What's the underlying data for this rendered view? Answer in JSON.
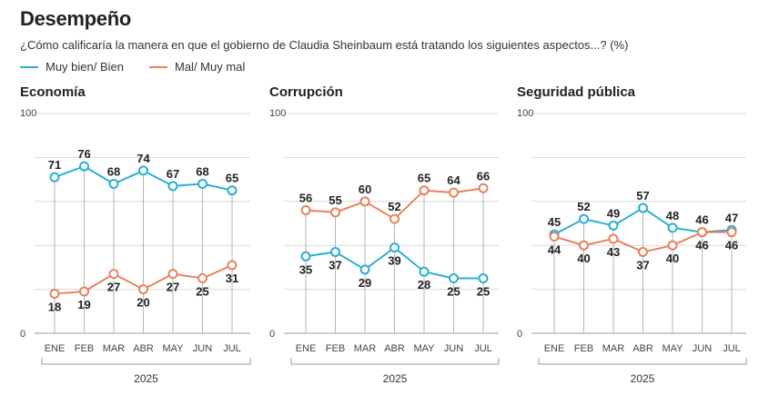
{
  "header": {
    "title": "Desempeño",
    "subtitle": "¿Cómo calificaría la manera en que el gobierno de Claudia Sheinbaum está tratando los siguientes aspectos...? (%)"
  },
  "legend": {
    "good_label": "Muy bien/ Bien",
    "bad_label": "Mal/ Muy mal"
  },
  "colors": {
    "good": "#2bb0cf",
    "bad": "#e8825e",
    "grid": "#d9d9d9",
    "drop": "#b5b5b5"
  },
  "chart_data": [
    {
      "type": "line",
      "title": "Economía",
      "categories": [
        "ENE",
        "FEB",
        "MAR",
        "ABR",
        "MAY",
        "JUN",
        "JUL"
      ],
      "ylim": [
        0,
        100
      ],
      "yticks": [
        "0",
        "100"
      ],
      "grid": true,
      "xgroup_label": "2025",
      "series": [
        {
          "name": "Muy bien/ Bien",
          "values": [
            71,
            76,
            68,
            74,
            67,
            68,
            65
          ]
        },
        {
          "name": "Mal/ Muy mal",
          "values": [
            18,
            19,
            27,
            20,
            27,
            25,
            31
          ]
        }
      ]
    },
    {
      "type": "line",
      "title": "Corrupción",
      "categories": [
        "ENE",
        "FEB",
        "MAR",
        "ABR",
        "MAY",
        "JUN",
        "JUL"
      ],
      "ylim": [
        0,
        100
      ],
      "yticks": [
        "0",
        "100"
      ],
      "grid": true,
      "xgroup_label": "2025",
      "series": [
        {
          "name": "Muy bien/ Bien",
          "values": [
            35,
            37,
            29,
            39,
            28,
            25,
            25
          ]
        },
        {
          "name": "Mal/ Muy mal",
          "values": [
            56,
            55,
            60,
            52,
            65,
            64,
            66
          ]
        }
      ]
    },
    {
      "type": "line",
      "title": "Seguridad pública",
      "categories": [
        "ENE",
        "FEB",
        "MAR",
        "ABR",
        "MAY",
        "JUN",
        "JUL"
      ],
      "ylim": [
        0,
        100
      ],
      "yticks": [
        "0",
        "100"
      ],
      "grid": true,
      "xgroup_label": "2025",
      "series": [
        {
          "name": "Muy bien/ Bien",
          "values": [
            45,
            52,
            49,
            57,
            48,
            46,
            47
          ]
        },
        {
          "name": "Mal/ Muy mal",
          "values": [
            44,
            40,
            43,
            37,
            40,
            46,
            46
          ]
        }
      ]
    }
  ]
}
